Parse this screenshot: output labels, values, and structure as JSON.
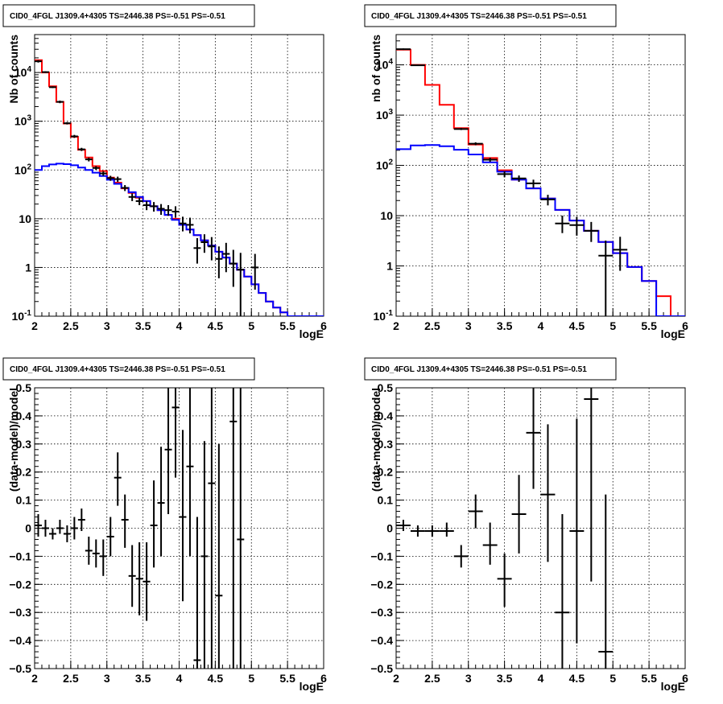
{
  "chart_data": [
    {
      "type": "line",
      "title": "CID0_4FGL J1309.4+4305 TS=2446.38 PS=-0.51 PS=-0.51",
      "xlabel": "logE",
      "ylabel": "Nb of counts",
      "xlim": [
        2,
        6
      ],
      "ylim": [
        0.1,
        60000
      ],
      "yscale": "log",
      "grid": true,
      "x_ticks": [
        "2",
        "2.5",
        "3",
        "3.5",
        "4",
        "4.5",
        "5",
        "5.5",
        "6"
      ],
      "y_ticks": [
        "10^-1",
        "1",
        "10",
        "10^2",
        "10^3",
        "10^4"
      ],
      "series": [
        {
          "color": "#ff0000",
          "style": "step",
          "edges": [
            2.0,
            2.1,
            2.2,
            2.3,
            2.4,
            2.5,
            2.6,
            2.7,
            2.8,
            2.9,
            3.0,
            3.1,
            3.2,
            3.3,
            3.4,
            3.5,
            3.6,
            3.7,
            3.8,
            3.9,
            4.0,
            4.1,
            4.2,
            4.3,
            4.4,
            4.5,
            4.6,
            4.7,
            4.8,
            4.9,
            5.0,
            5.1,
            5.2,
            5.3,
            5.4,
            5.5,
            5.6,
            5.7,
            5.8,
            5.9,
            6.0
          ],
          "values": [
            18000,
            10000,
            5200,
            2500,
            900,
            480,
            260,
            180,
            120,
            95,
            70,
            55,
            42,
            34,
            27,
            23,
            18,
            15,
            12,
            10,
            7.5,
            6,
            4.6,
            3.6,
            2.8,
            2.1,
            1.6,
            1.2,
            0.9,
            0.65,
            0.45,
            0.3,
            0.2,
            0.15,
            0.12,
            0.1,
            0.1,
            0.1,
            0.1,
            0.1
          ]
        },
        {
          "color": "#0000ff",
          "style": "step",
          "edges": [
            2.0,
            2.1,
            2.2,
            2.3,
            2.4,
            2.5,
            2.6,
            2.7,
            2.8,
            2.9,
            3.0,
            3.1,
            3.2,
            3.3,
            3.4,
            3.5,
            3.6,
            3.7,
            3.8,
            3.9,
            4.0,
            4.1,
            4.2,
            4.3,
            4.4,
            4.5,
            4.6,
            4.7,
            4.8,
            4.9,
            5.0,
            5.1,
            5.2,
            5.3,
            5.4,
            5.5,
            5.6,
            5.7,
            5.8,
            5.9,
            6.0
          ],
          "values": [
            100,
            120,
            130,
            135,
            132,
            125,
            112,
            100,
            88,
            75,
            63,
            52,
            43,
            35,
            28,
            23,
            18,
            15,
            12,
            9.5,
            7.5,
            6,
            4.6,
            3.6,
            2.8,
            2.1,
            1.6,
            1.2,
            0.9,
            0.65,
            0.45,
            0.3,
            0.2,
            0.15,
            0.12,
            0.1,
            0.1,
            0.1,
            0.1,
            0.1
          ]
        }
      ],
      "points": [
        {
          "x": 2.05,
          "y": 17000,
          "ylo": 16000,
          "yhi": 18000
        },
        {
          "x": 2.15,
          "y": 10200,
          "ylo": 9800,
          "yhi": 10600
        },
        {
          "x": 2.25,
          "y": 5000,
          "ylo": 4800,
          "yhi": 5200
        },
        {
          "x": 2.35,
          "y": 2500,
          "ylo": 2350,
          "yhi": 2650
        },
        {
          "x": 2.45,
          "y": 910,
          "ylo": 860,
          "yhi": 960
        },
        {
          "x": 2.55,
          "y": 490,
          "ylo": 455,
          "yhi": 525
        },
        {
          "x": 2.65,
          "y": 265,
          "ylo": 245,
          "yhi": 285
        },
        {
          "x": 2.75,
          "y": 165,
          "ylo": 150,
          "yhi": 180
        },
        {
          "x": 2.85,
          "y": 110,
          "ylo": 100,
          "yhi": 120
        },
        {
          "x": 2.95,
          "y": 85,
          "ylo": 76,
          "yhi": 94
        },
        {
          "x": 3.05,
          "y": 68,
          "ylo": 60,
          "yhi": 76
        },
        {
          "x": 3.15,
          "y": 65,
          "ylo": 57,
          "yhi": 73
        },
        {
          "x": 3.25,
          "y": 43,
          "ylo": 37,
          "yhi": 49
        },
        {
          "x": 3.35,
          "y": 28,
          "ylo": 23,
          "yhi": 33
        },
        {
          "x": 3.45,
          "y": 23,
          "ylo": 19,
          "yhi": 27
        },
        {
          "x": 3.55,
          "y": 19,
          "ylo": 15,
          "yhi": 23
        },
        {
          "x": 3.65,
          "y": 18,
          "ylo": 14,
          "yhi": 22
        },
        {
          "x": 3.75,
          "y": 16,
          "ylo": 12,
          "yhi": 20
        },
        {
          "x": 3.85,
          "y": 15,
          "ylo": 11.5,
          "yhi": 19
        },
        {
          "x": 3.95,
          "y": 14,
          "ylo": 10.5,
          "yhi": 18
        },
        {
          "x": 4.05,
          "y": 8,
          "ylo": 5.5,
          "yhi": 11
        },
        {
          "x": 4.15,
          "y": 7.5,
          "ylo": 5,
          "yhi": 10.5
        },
        {
          "x": 4.25,
          "y": 2.5,
          "ylo": 1.2,
          "yhi": 4
        },
        {
          "x": 4.35,
          "y": 3.3,
          "ylo": 2,
          "yhi": 4.8
        },
        {
          "x": 4.45,
          "y": 2.7,
          "ylo": 1.4,
          "yhi": 4.2
        },
        {
          "x": 4.55,
          "y": 1.5,
          "ylo": 0.6,
          "yhi": 2.7
        },
        {
          "x": 4.65,
          "y": 1.9,
          "ylo": 0.8,
          "yhi": 3.2
        },
        {
          "x": 4.75,
          "y": 1.2,
          "ylo": 0.4,
          "yhi": 2.3
        },
        {
          "x": 4.85,
          "y": 0.9,
          "ylo": 0.1,
          "yhi": 2.0
        },
        {
          "x": 5.05,
          "y": 1.0,
          "ylo": 0.35,
          "yhi": 1.9
        }
      ]
    },
    {
      "type": "line",
      "title": "CID0_4FGL J1309.4+4305 TS=2446.38 PS=-0.51 PS=-0.51",
      "xlabel": "logE",
      "ylabel": "nb of counts",
      "xlim": [
        2,
        6
      ],
      "ylim": [
        0.1,
        40000
      ],
      "yscale": "log",
      "grid": true,
      "x_ticks": [
        "2",
        "2.5",
        "3",
        "3.5",
        "4",
        "4.5",
        "5",
        "5.5",
        "6"
      ],
      "y_ticks": [
        "10^-1",
        "1",
        "10",
        "10^2",
        "10^3",
        "10^4"
      ],
      "series": [
        {
          "color": "#ff0000",
          "style": "step",
          "edges": [
            2.0,
            2.2,
            2.4,
            2.6,
            2.8,
            3.0,
            3.2,
            3.4,
            3.6,
            3.8,
            4.0,
            4.2,
            4.4,
            4.6,
            4.8,
            5.0,
            5.2,
            5.4,
            5.6,
            5.8,
            6.0
          ],
          "values": [
            20000,
            10000,
            4000,
            1600,
            550,
            260,
            140,
            80,
            52,
            35,
            22,
            13,
            8,
            5,
            3,
            1.8,
            0.95,
            0.5,
            0.25,
            0.1
          ]
        },
        {
          "color": "#0000ff",
          "style": "step",
          "edges": [
            2.0,
            2.2,
            2.4,
            2.6,
            2.8,
            3.0,
            3.2,
            3.4,
            3.6,
            3.8,
            4.0,
            4.2,
            4.4,
            4.6,
            4.8,
            5.0,
            5.2,
            5.4,
            5.6,
            5.8,
            6.0
          ],
          "values": [
            210,
            250,
            255,
            240,
            205,
            165,
            115,
            75,
            52,
            35,
            22,
            13,
            8,
            5,
            3,
            1.8,
            0.95,
            0.5,
            0.1,
            0.1
          ]
        }
      ],
      "points": [
        {
          "x": 2.1,
          "y": 20500,
          "ylo": 19800,
          "yhi": 21200
        },
        {
          "x": 2.3,
          "y": 9800,
          "ylo": 9500,
          "yhi": 10100
        },
        {
          "x": 2.9,
          "y": 530,
          "ylo": 505,
          "yhi": 555
        },
        {
          "x": 3.1,
          "y": 270,
          "ylo": 252,
          "yhi": 288
        },
        {
          "x": 3.3,
          "y": 130,
          "ylo": 118,
          "yhi": 142
        },
        {
          "x": 3.5,
          "y": 67,
          "ylo": 58,
          "yhi": 76
        },
        {
          "x": 3.7,
          "y": 55,
          "ylo": 47,
          "yhi": 63
        },
        {
          "x": 3.9,
          "y": 44,
          "ylo": 36,
          "yhi": 52
        },
        {
          "x": 4.1,
          "y": 21,
          "ylo": 16,
          "yhi": 26
        },
        {
          "x": 4.3,
          "y": 7,
          "ylo": 4.5,
          "yhi": 10
        },
        {
          "x": 4.5,
          "y": 6.5,
          "ylo": 4,
          "yhi": 9.5
        },
        {
          "x": 4.7,
          "y": 5,
          "ylo": 3,
          "yhi": 7.5
        },
        {
          "x": 4.9,
          "y": 1.6,
          "ylo": 0.1,
          "yhi": 3.2
        },
        {
          "x": 5.1,
          "y": 2.1,
          "ylo": 0.8,
          "yhi": 3.8
        }
      ]
    },
    {
      "type": "scatter",
      "title": "CID0_4FGL J1309.4+4305 TS=2446.38 PS=-0.51 PS=-0.51",
      "xlabel": "logE",
      "ylabel": "(data-model)/model",
      "xlim": [
        2,
        6
      ],
      "ylim": [
        -0.5,
        0.5
      ],
      "grid": true,
      "x_ticks": [
        "2",
        "2.5",
        "3",
        "3.5",
        "4",
        "4.5",
        "5",
        "5.5",
        "6"
      ],
      "y_ticks": [
        "−0.5",
        "−0.4",
        "−0.3",
        "−0.2",
        "−0.1",
        "0",
        "0.1",
        "0.2",
        "0.3",
        "0.4",
        "0.5"
      ],
      "y_tick_values": [
        -0.5,
        -0.4,
        -0.3,
        -0.2,
        -0.1,
        0,
        0.1,
        0.2,
        0.3,
        0.4,
        0.5
      ],
      "points": [
        {
          "x": 2.05,
          "y": 0.01,
          "ylo": -0.03,
          "yhi": 0.05
        },
        {
          "x": 2.15,
          "y": 0.0,
          "ylo": -0.03,
          "yhi": 0.03
        },
        {
          "x": 2.25,
          "y": -0.02,
          "ylo": -0.04,
          "yhi": 0.0
        },
        {
          "x": 2.35,
          "y": 0.0,
          "ylo": -0.02,
          "yhi": 0.03
        },
        {
          "x": 2.45,
          "y": -0.02,
          "ylo": -0.05,
          "yhi": 0.01
        },
        {
          "x": 2.55,
          "y": 0.0,
          "ylo": -0.04,
          "yhi": 0.04
        },
        {
          "x": 2.65,
          "y": 0.03,
          "ylo": -0.01,
          "yhi": 0.07
        },
        {
          "x": 2.75,
          "y": -0.08,
          "ylo": -0.13,
          "yhi": -0.03
        },
        {
          "x": 2.85,
          "y": -0.09,
          "ylo": -0.14,
          "yhi": -0.04
        },
        {
          "x": 2.95,
          "y": -0.1,
          "ylo": -0.17,
          "yhi": -0.04
        },
        {
          "x": 3.05,
          "y": -0.03,
          "ylo": -0.1,
          "yhi": 0.04
        },
        {
          "x": 3.15,
          "y": 0.18,
          "ylo": 0.08,
          "yhi": 0.27
        },
        {
          "x": 3.25,
          "y": 0.03,
          "ylo": -0.07,
          "yhi": 0.12
        },
        {
          "x": 3.35,
          "y": -0.17,
          "ylo": -0.28,
          "yhi": -0.06
        },
        {
          "x": 3.45,
          "y": -0.18,
          "ylo": -0.31,
          "yhi": -0.05
        },
        {
          "x": 3.55,
          "y": -0.19,
          "ylo": -0.33,
          "yhi": -0.05
        },
        {
          "x": 3.65,
          "y": 0.01,
          "ylo": -0.14,
          "yhi": 0.17
        },
        {
          "x": 3.75,
          "y": 0.09,
          "ylo": -0.1,
          "yhi": 0.29
        },
        {
          "x": 3.85,
          "y": 0.28,
          "ylo": 0.05,
          "yhi": 0.5
        },
        {
          "x": 3.95,
          "y": 0.43,
          "ylo": 0.18,
          "yhi": 0.5
        },
        {
          "x": 4.05,
          "y": 0.04,
          "ylo": -0.26,
          "yhi": 0.35
        },
        {
          "x": 4.15,
          "y": 0.22,
          "ylo": -0.1,
          "yhi": 0.5
        },
        {
          "x": 4.25,
          "y": -0.47,
          "ylo": -0.5,
          "yhi": 0.04
        },
        {
          "x": 4.35,
          "y": -0.1,
          "ylo": -0.5,
          "yhi": 0.31
        },
        {
          "x": 4.45,
          "y": 0.16,
          "ylo": -0.5,
          "yhi": 0.5
        },
        {
          "x": 4.55,
          "y": -0.24,
          "ylo": -0.5,
          "yhi": 0.3
        },
        {
          "x": 4.75,
          "y": 0.38,
          "ylo": -0.5,
          "yhi": 0.5
        },
        {
          "x": 4.85,
          "y": -0.04,
          "ylo": -0.5,
          "yhi": 0.5
        }
      ]
    },
    {
      "type": "scatter",
      "title": "CID0_4FGL J1309.4+4305 TS=2446.38 PS=-0.51 PS=-0.51",
      "xlabel": "logE",
      "ylabel": "(data-model)/model",
      "xlim": [
        2,
        6
      ],
      "ylim": [
        -0.5,
        0.5
      ],
      "grid": true,
      "x_ticks": [
        "2",
        "2.5",
        "3",
        "3.5",
        "4",
        "4.5",
        "5",
        "5.5",
        "6"
      ],
      "y_ticks": [
        "−0.5",
        "−0.4",
        "−0.3",
        "−0.2",
        "−0.1",
        "0",
        "0.1",
        "0.2",
        "0.3",
        "0.4",
        "0.5"
      ],
      "y_tick_values": [
        -0.5,
        -0.4,
        -0.3,
        -0.2,
        -0.1,
        0,
        0.1,
        0.2,
        0.3,
        0.4,
        0.5
      ],
      "points": [
        {
          "x": 2.1,
          "y": 0.01,
          "ylo": -0.01,
          "yhi": 0.03
        },
        {
          "x": 2.3,
          "y": -0.01,
          "ylo": -0.03,
          "yhi": 0.01
        },
        {
          "x": 2.5,
          "y": -0.01,
          "ylo": -0.03,
          "yhi": 0.01
        },
        {
          "x": 2.7,
          "y": -0.01,
          "ylo": -0.03,
          "yhi": 0.02
        },
        {
          "x": 2.9,
          "y": -0.1,
          "ylo": -0.14,
          "yhi": -0.06
        },
        {
          "x": 3.1,
          "y": 0.06,
          "ylo": 0.0,
          "yhi": 0.12
        },
        {
          "x": 3.3,
          "y": -0.06,
          "ylo": -0.13,
          "yhi": 0.02
        },
        {
          "x": 3.5,
          "y": -0.18,
          "ylo": -0.28,
          "yhi": -0.09
        },
        {
          "x": 3.7,
          "y": 0.05,
          "ylo": -0.09,
          "yhi": 0.19
        },
        {
          "x": 3.9,
          "y": 0.34,
          "ylo": 0.14,
          "yhi": 0.5
        },
        {
          "x": 4.1,
          "y": 0.12,
          "ylo": -0.12,
          "yhi": 0.37
        },
        {
          "x": 4.3,
          "y": -0.3,
          "ylo": -0.5,
          "yhi": 0.05
        },
        {
          "x": 4.5,
          "y": -0.01,
          "ylo": -0.41,
          "yhi": 0.39
        },
        {
          "x": 4.7,
          "y": 0.46,
          "ylo": -0.19,
          "yhi": 0.5
        },
        {
          "x": 4.9,
          "y": -0.44,
          "ylo": -0.5,
          "yhi": 0.12
        }
      ]
    }
  ]
}
